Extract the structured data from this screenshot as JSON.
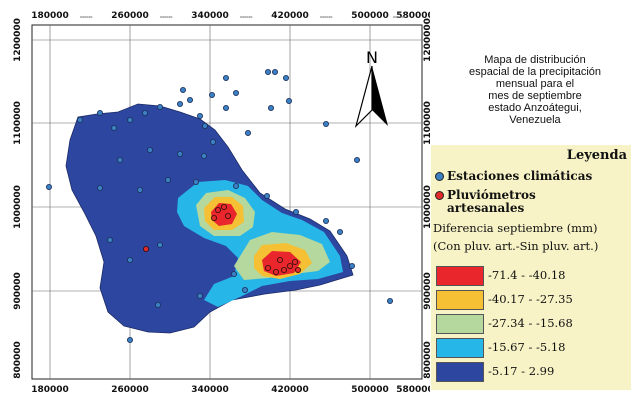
{
  "map": {
    "x_ticks_top": [
      "180000",
      "260000",
      "340000",
      "420000",
      "500000",
      "580000"
    ],
    "x_ticks_bottom": [
      "180000",
      "260000",
      "340000",
      "420000",
      "500000",
      "580000"
    ],
    "y_ticks": [
      "1200000",
      "1100000",
      "1000000",
      "900000",
      "800000"
    ],
    "north_label": "N",
    "tick_suffix": "000000",
    "colors": {
      "class1": "#e8262b",
      "class2": "#f5c033",
      "class3": "#b4d89d",
      "class4": "#27b6e8",
      "class5": "#2d47a0",
      "station": "#3a80c3",
      "gauge": "#e22a2a"
    }
  },
  "title": {
    "lines": [
      "Mapa de distribución",
      "espacial de la precipitación",
      "mensual para el",
      "mes de septiembre",
      "estado Anzoátegui,",
      "Venezuela"
    ]
  },
  "legend": {
    "title": "Leyenda",
    "station_label": "Estaciones climáticas",
    "gauge_label_line1": "Pluviómetros",
    "gauge_label_line2": "artesanales",
    "variable_line1": "Diferencia septiembre (mm)",
    "variable_line2": "(Con pluv. art.-Sin pluv. art.)",
    "classes": [
      {
        "label": "-71.4 - -40.18",
        "color": "#e8262b"
      },
      {
        "label": "-40.17 - -27.35",
        "color": "#f5c033"
      },
      {
        "label": "-27.34 - -15.68",
        "color": "#b4d89d"
      },
      {
        "label": "-15.67 - -5.18",
        "color": "#27b6e8"
      },
      {
        "label": "-5.17 - 2.99",
        "color": "#2d47a0"
      }
    ]
  }
}
